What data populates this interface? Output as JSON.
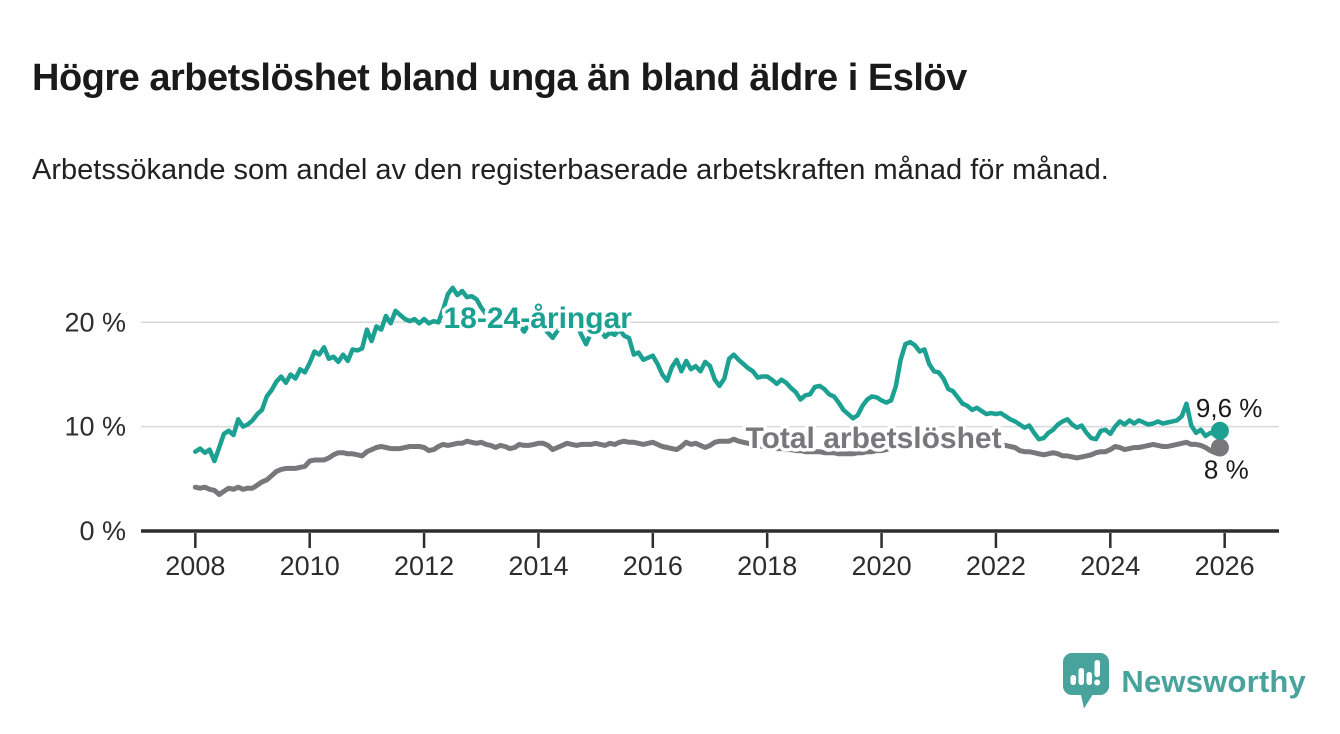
{
  "header": {
    "title": "Högre arbetslöshet bland unga än bland äldre i Eslöv",
    "subtitle": "Arbetssökande som andel av den registerbaserade arbetskraften månad för månad."
  },
  "footer": {
    "brand": "Newsworthy",
    "logo_icon": "bar-chart-speech-bubble-icon"
  },
  "colors": {
    "young_line": "#1ca092",
    "total_line": "#78787b",
    "grid": "#d9d9d9",
    "axis": "#2d2d2d",
    "value_label": "#1a1a1a",
    "brand_teal": "#47a39b",
    "background": "#ffffff"
  },
  "chart_data": {
    "type": "line",
    "title": "Högre arbetslöshet bland unga än bland äldre i Eslöv",
    "subtitle": "Arbetssökande som andel av den registerbaserade arbetskraften månad för månad.",
    "x_axis": {
      "domain": [
        2007.05,
        2026.95
      ],
      "ticks": [
        {
          "value": 2008,
          "label": "2008"
        },
        {
          "value": 2010,
          "label": "2010"
        },
        {
          "value": 2012,
          "label": "2012"
        },
        {
          "value": 2014,
          "label": "2014"
        },
        {
          "value": 2016,
          "label": "2016"
        },
        {
          "value": 2018,
          "label": "2018"
        },
        {
          "value": 2020,
          "label": "2020"
        },
        {
          "value": 2022,
          "label": "2022"
        },
        {
          "value": 2024,
          "label": "2024"
        },
        {
          "value": 2026,
          "label": "2026"
        }
      ]
    },
    "y_axis": {
      "domain": [
        0,
        25.2
      ],
      "unit": "%",
      "grid": true,
      "ticks": [
        {
          "value": 20,
          "label": "20 %"
        },
        {
          "value": 10,
          "label": "10 %"
        },
        {
          "value": 0,
          "label": "0 %"
        }
      ]
    },
    "legend_position": "inline-labels",
    "series": [
      {
        "id": "total",
        "name": "Total arbetslöshet",
        "color": "#78787b",
        "line_width": 5,
        "label_pos": {
          "x": 2017.62,
          "v": 7.95
        },
        "end_dot": true,
        "end_label": "8 %",
        "end_label_position": "below",
        "start_year": 2008,
        "monthly_values": [
          4.2,
          4.1,
          4.2,
          4.0,
          3.9,
          3.5,
          3.8,
          4.1,
          4.0,
          4.2,
          4.0,
          4.1,
          4.1,
          4.4,
          4.7,
          4.9,
          5.3,
          5.7,
          5.9,
          6.0,
          6.0,
          6.0,
          6.1,
          6.2,
          6.7,
          6.8,
          6.8,
          6.8,
          7.0,
          7.3,
          7.5,
          7.5,
          7.4,
          7.4,
          7.3,
          7.2,
          7.6,
          7.8,
          8.0,
          8.1,
          8.0,
          7.9,
          7.9,
          7.9,
          8.0,
          8.1,
          8.1,
          8.1,
          8.0,
          7.7,
          7.8,
          8.1,
          8.3,
          8.2,
          8.3,
          8.4,
          8.4,
          8.6,
          8.5,
          8.4,
          8.5,
          8.3,
          8.2,
          8.0,
          8.2,
          8.1,
          7.9,
          8.0,
          8.3,
          8.2,
          8.2,
          8.3,
          8.4,
          8.4,
          8.2,
          7.8,
          8.0,
          8.2,
          8.4,
          8.3,
          8.2,
          8.3,
          8.3,
          8.3,
          8.4,
          8.3,
          8.2,
          8.4,
          8.3,
          8.5,
          8.6,
          8.5,
          8.5,
          8.4,
          8.3,
          8.4,
          8.5,
          8.3,
          8.1,
          8.0,
          7.9,
          7.8,
          8.1,
          8.5,
          8.3,
          8.4,
          8.2,
          8.0,
          8.2,
          8.5,
          8.6,
          8.6,
          8.6,
          8.8,
          8.6,
          8.5,
          8.4,
          8.3,
          8.2,
          8.1,
          8.0,
          8.0,
          7.9,
          7.9,
          7.8,
          7.8,
          7.7,
          7.7,
          7.6,
          7.6,
          7.6,
          7.6,
          7.5,
          7.5,
          7.5,
          7.4,
          7.4,
          7.4,
          7.4,
          7.5,
          7.5,
          7.6,
          7.6,
          7.7,
          7.7,
          7.8,
          8.0,
          8.4,
          8.8,
          9.2,
          9.4,
          9.4,
          9.4,
          9.3,
          9.3,
          9.3,
          9.2,
          9.1,
          9.0,
          8.9,
          8.8,
          8.7,
          8.6,
          8.6,
          8.5,
          8.5,
          8.4,
          8.4,
          8.3,
          8.2,
          8.2,
          8.1,
          8.0,
          7.7,
          7.6,
          7.6,
          7.5,
          7.4,
          7.3,
          7.4,
          7.5,
          7.4,
          7.2,
          7.2,
          7.1,
          7.0,
          7.1,
          7.2,
          7.3,
          7.5,
          7.6,
          7.6,
          7.8,
          8.1,
          8.0,
          7.8,
          7.9,
          8.0,
          8.0,
          8.1,
          8.2,
          8.3,
          8.2,
          8.1,
          8.1,
          8.2,
          8.3,
          8.4,
          8.5,
          8.3,
          8.3,
          8.2,
          8.0,
          7.7,
          7.5,
          8.0
        ]
      },
      {
        "id": "young",
        "name": "18-24-åringar",
        "color": "#1ca092",
        "line_width": 4.5,
        "label_pos": {
          "x": 2012.34,
          "v": 19.45
        },
        "end_dot": true,
        "end_label": "9,6 %",
        "end_label_position": "above",
        "start_year": 2008,
        "monthly_values": [
          7.6,
          7.9,
          7.5,
          7.8,
          6.7,
          8.0,
          9.3,
          9.6,
          9.2,
          10.7,
          10.0,
          10.2,
          10.6,
          11.2,
          11.6,
          12.9,
          13.5,
          14.3,
          14.8,
          14.2,
          15.0,
          14.6,
          15.5,
          15.2,
          16.1,
          17.2,
          16.9,
          17.6,
          16.5,
          16.7,
          16.2,
          16.9,
          16.3,
          17.4,
          17.3,
          17.5,
          19.3,
          18.2,
          19.6,
          19.3,
          20.6,
          19.9,
          21.1,
          20.7,
          20.3,
          20.1,
          20.3,
          19.9,
          20.3,
          19.9,
          20.1,
          20.0,
          21.2,
          22.7,
          23.3,
          22.6,
          23.0,
          22.4,
          22.5,
          22.2,
          21.4,
          20.8,
          21.3,
          20.6,
          20.2,
          20.5,
          20.0,
          20.3,
          19.7,
          19.1,
          19.9,
          20.2,
          20.0,
          19.5,
          19.0,
          18.5,
          19.2,
          19.6,
          19.9,
          20.3,
          20.0,
          18.8,
          17.9,
          19.0,
          19.5,
          19.2,
          18.6,
          19.0,
          18.8,
          19.3,
          18.7,
          18.5,
          16.9,
          17.1,
          16.4,
          16.6,
          16.8,
          16.0,
          15.0,
          14.4,
          15.7,
          16.4,
          15.3,
          16.3,
          15.5,
          15.8,
          15.3,
          16.2,
          15.8,
          14.5,
          13.9,
          14.6,
          16.5,
          16.9,
          16.4,
          16.0,
          15.6,
          15.3,
          14.7,
          14.8,
          14.8,
          14.5,
          14.1,
          14.5,
          14.2,
          13.7,
          13.3,
          12.6,
          13.0,
          13.1,
          13.8,
          13.9,
          13.6,
          13.1,
          12.9,
          12.3,
          11.6,
          11.2,
          10.8,
          11.1,
          12.0,
          12.6,
          12.9,
          12.8,
          12.5,
          12.3,
          12.5,
          13.9,
          16.4,
          17.9,
          18.1,
          17.8,
          17.2,
          17.4,
          16.0,
          15.3,
          15.2,
          14.6,
          13.6,
          13.4,
          12.8,
          12.2,
          12.0,
          11.6,
          11.8,
          11.5,
          11.2,
          11.3,
          11.2,
          11.3,
          11.0,
          10.7,
          10.5,
          10.2,
          9.9,
          10.1,
          9.4,
          8.8,
          8.9,
          9.4,
          9.7,
          10.2,
          10.5,
          10.7,
          10.2,
          9.9,
          10.1,
          9.4,
          8.9,
          8.8,
          9.6,
          9.7,
          9.3,
          10.0,
          10.5,
          10.2,
          10.6,
          10.3,
          10.6,
          10.4,
          10.2,
          10.3,
          10.5,
          10.3,
          10.4,
          10.5,
          10.6,
          11.0,
          12.2,
          10.1,
          9.4,
          9.7,
          9.1,
          9.4,
          9.3,
          9.6
        ]
      }
    ]
  }
}
